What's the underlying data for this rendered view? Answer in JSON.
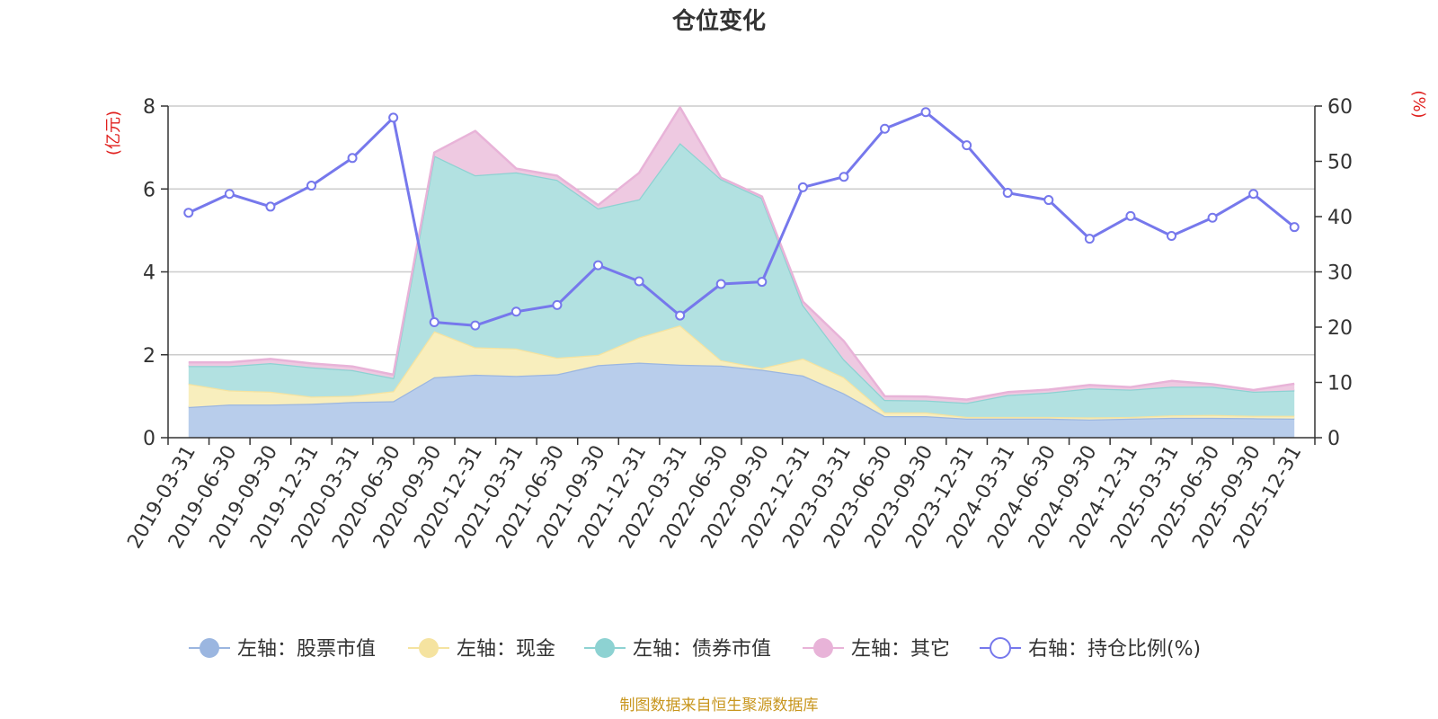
{
  "chart_data": {
    "type": "area",
    "title": "仓位变化",
    "left_unit": "(亿元)",
    "right_unit": "(%)",
    "left_ylim": [
      0,
      8
    ],
    "left_ticks": [
      "0",
      "2",
      "4",
      "6",
      "8"
    ],
    "right_ylim": [
      0,
      60
    ],
    "right_ticks": [
      "0",
      "10",
      "20",
      "30",
      "40",
      "50",
      "60"
    ],
    "categories": [
      "2019-03-31",
      "2019-06-30",
      "2019-09-30",
      "2019-12-31",
      "2020-03-31",
      "2020-06-30",
      "2020-09-30",
      "2020-12-31",
      "2021-03-31",
      "2021-06-30",
      "2021-09-30",
      "2021-12-31",
      "2022-03-31",
      "2022-06-30",
      "2022-09-30",
      "2022-12-31",
      "2023-03-31",
      "2023-06-30",
      "2023-09-30",
      "2023-12-31",
      "2024-03-31",
      "2024-06-30",
      "2024-09-30",
      "2024-12-31",
      "2025-03-31",
      "2025-06-30",
      "2025-09-30",
      "2025-12-31"
    ],
    "stacked_series": [
      {
        "name": "左轴：股票市值",
        "axis": "left",
        "color": "#9bb6e0",
        "fill": "#b8cdeb",
        "values": [
          0.74,
          0.8,
          0.8,
          0.82,
          0.86,
          0.88,
          1.46,
          1.52,
          1.49,
          1.53,
          1.75,
          1.81,
          1.76,
          1.74,
          1.64,
          1.5,
          1.07,
          0.52,
          0.52,
          0.46,
          0.46,
          0.46,
          0.44,
          0.46,
          0.48,
          0.48,
          0.47,
          0.46
        ]
      },
      {
        "name": "左轴：现金",
        "axis": "left",
        "color": "#f5e3a0",
        "fill": "#f8eebd",
        "values": [
          0.56,
          0.34,
          0.31,
          0.17,
          0.15,
          0.24,
          1.11,
          0.66,
          0.66,
          0.4,
          0.25,
          0.61,
          0.95,
          0.13,
          0.04,
          0.41,
          0.39,
          0.09,
          0.09,
          0.04,
          0.04,
          0.04,
          0.05,
          0.04,
          0.06,
          0.07,
          0.06,
          0.07
        ]
      },
      {
        "name": "左轴：债券市值",
        "axis": "left",
        "color": "#8dd2d2",
        "fill": "#b2e1e1",
        "values": [
          0.43,
          0.59,
          0.69,
          0.71,
          0.62,
          0.32,
          4.23,
          4.15,
          4.25,
          4.29,
          3.53,
          3.33,
          4.4,
          4.37,
          4.1,
          1.29,
          0.43,
          0.3,
          0.29,
          0.34,
          0.53,
          0.59,
          0.7,
          0.66,
          0.69,
          0.68,
          0.58,
          0.61
        ]
      },
      {
        "name": "左轴：其它",
        "axis": "left",
        "color": "#e8b3d8",
        "fill": "#eec9e1",
        "values": [
          0.09,
          0.09,
          0.1,
          0.09,
          0.09,
          0.08,
          0.08,
          1.07,
          0.09,
          0.1,
          0.08,
          0.64,
          0.86,
          0.03,
          0.04,
          0.08,
          0.44,
          0.09,
          0.09,
          0.08,
          0.07,
          0.07,
          0.08,
          0.06,
          0.14,
          0.06,
          0.04,
          0.16
        ]
      }
    ],
    "line_series": {
      "name": "右轴：持仓比例(%)",
      "axis": "right",
      "color": "#7678ec",
      "values": [
        40.7,
        44.1,
        41.8,
        45.6,
        50.6,
        57.9,
        20.9,
        20.3,
        22.8,
        24.0,
        31.2,
        28.3,
        22.1,
        27.8,
        28.2,
        45.3,
        47.2,
        55.9,
        58.9,
        52.9,
        44.3,
        43.0,
        36.0,
        40.1,
        36.5,
        39.8,
        44.1,
        38.1
      ]
    },
    "legend": [
      {
        "label": "左轴：股票市值",
        "color": "#9bb6e0",
        "marker": "circle-filled"
      },
      {
        "label": "左轴：现金",
        "color": "#f5e3a0",
        "marker": "circle-filled"
      },
      {
        "label": "左轴：债券市值",
        "color": "#8dd2d2",
        "marker": "circle-filled"
      },
      {
        "label": "左轴：其它",
        "color": "#e8b3d8",
        "marker": "circle-filled"
      },
      {
        "label": "右轴：持仓比例(%)",
        "color": "#7678ec",
        "marker": "circle-hollow"
      }
    ],
    "legend_position": "bottom-center",
    "grid": true
  },
  "footer": {
    "source": "制图数据来自恒生聚源数据库"
  },
  "colors": {
    "text": "#333333",
    "unit": "#e0201e",
    "source": "#c8961e",
    "grid": "#cccccc"
  }
}
